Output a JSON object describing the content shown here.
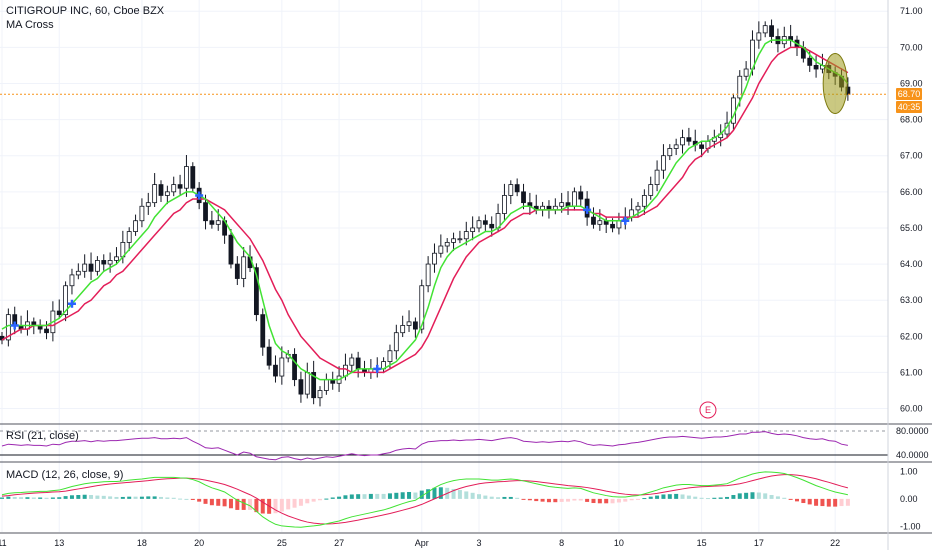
{
  "header": {
    "symbol_line": "CITIGROUP INC, 60, Cboe BZX",
    "indicator": "MA Cross"
  },
  "price_badge": {
    "price": "68.70",
    "countdown": "40:35"
  },
  "earnings_marker": "E",
  "chart_data": [
    {
      "type": "candlestick",
      "panel": "price",
      "yticks": [
        "71.00",
        "70.00",
        "69.00",
        "68.00",
        "67.00",
        "66.00",
        "65.00",
        "64.00",
        "63.00",
        "62.00",
        "61.00",
        "60.00"
      ],
      "ylim": [
        59.6,
        71.2
      ],
      "x_ticks": [
        {
          "label": "11",
          "index": 0
        },
        {
          "label": "13",
          "index": 9
        },
        {
          "label": "18",
          "index": 22
        },
        {
          "label": "20",
          "index": 31
        },
        {
          "label": "25",
          "index": 44
        },
        {
          "label": "27",
          "index": 53
        },
        {
          "label": "Apr",
          "index": 66
        },
        {
          "label": "3",
          "index": 75
        },
        {
          "label": "8",
          "index": 88
        },
        {
          "label": "10",
          "index": 97
        },
        {
          "label": "15",
          "index": 110
        },
        {
          "label": "17",
          "index": 119
        },
        {
          "label": "22",
          "index": 131
        }
      ],
      "close": [
        61.9,
        62.6,
        62.3,
        62.2,
        62.4,
        62.3,
        62.2,
        62.1,
        62.7,
        62.6,
        63.4,
        63.7,
        63.8,
        64.0,
        63.8,
        64.1,
        64.0,
        64.1,
        64.2,
        64.6,
        64.9,
        65.2,
        65.6,
        65.7,
        66.2,
        65.9,
        66.0,
        66.2,
        66.1,
        66.7,
        66.1,
        65.7,
        65.2,
        65.1,
        65.2,
        64.8,
        64.0,
        63.6,
        64.2,
        63.9,
        62.6,
        61.7,
        61.2,
        60.9,
        61.4,
        61.5,
        60.8,
        60.4,
        61.0,
        60.3,
        60.5,
        60.8,
        60.7,
        60.9,
        61.2,
        61.4,
        61.1,
        61.0,
        61.1,
        61.1,
        61.3,
        61.6,
        62.1,
        62.3,
        62.4,
        62.2,
        63.4,
        64.0,
        64.3,
        64.5,
        64.6,
        64.7,
        64.7,
        64.9,
        65.0,
        65.2,
        65.1,
        65.0,
        65.4,
        65.9,
        66.2,
        66.0,
        65.7,
        65.6,
        65.5,
        65.6,
        65.5,
        65.6,
        65.7,
        65.6,
        66.0,
        65.8,
        65.3,
        65.1,
        65.2,
        65.1,
        65.0,
        65.2,
        65.3,
        65.5,
        65.6,
        65.9,
        66.2,
        66.6,
        67.0,
        67.2,
        67.3,
        67.5,
        67.4,
        67.3,
        67.2,
        67.4,
        67.5,
        67.6,
        67.9,
        68.6,
        69.2,
        69.4,
        70.2,
        70.4,
        70.6,
        70.3,
        70.1,
        70.3,
        70.2,
        70.0,
        69.7,
        69.5,
        69.4,
        69.5,
        69.3,
        69.2,
        68.9,
        68.7
      ],
      "series": [
        {
          "name": "short MA",
          "color": "#42e334",
          "values": [
            62.2,
            62.3,
            62.3,
            62.3,
            62.3,
            62.3,
            62.3,
            62.3,
            62.4,
            62.5,
            62.7,
            62.9,
            63.1,
            63.3,
            63.5,
            63.6,
            63.8,
            63.9,
            64.0,
            64.2,
            64.4,
            64.6,
            64.8,
            65.0,
            65.3,
            65.5,
            65.7,
            65.8,
            65.9,
            66.0,
            66.0,
            65.9,
            65.8,
            65.6,
            65.4,
            65.2,
            64.9,
            64.6,
            64.4,
            64.2,
            63.7,
            63.0,
            62.3,
            61.8,
            61.6,
            61.5,
            61.3,
            61.1,
            61.0,
            60.9,
            60.8,
            60.8,
            60.8,
            60.8,
            60.9,
            61.0,
            61.1,
            61.1,
            61.1,
            61.1,
            61.1,
            61.2,
            61.3,
            61.5,
            61.7,
            61.9,
            62.3,
            62.8,
            63.4,
            63.9,
            64.2,
            64.4,
            64.5,
            64.6,
            64.7,
            64.8,
            64.9,
            64.9,
            65.0,
            65.2,
            65.4,
            65.5,
            65.6,
            65.6,
            65.5,
            65.5,
            65.5,
            65.5,
            65.5,
            65.6,
            65.6,
            65.6,
            65.5,
            65.4,
            65.3,
            65.2,
            65.2,
            65.2,
            65.2,
            65.3,
            65.4,
            65.5,
            65.7,
            65.9,
            66.2,
            66.5,
            66.8,
            67.0,
            67.2,
            67.3,
            67.4,
            67.4,
            67.5,
            67.6,
            67.8,
            68.1,
            68.5,
            68.9,
            69.4,
            69.8,
            70.1,
            70.2,
            70.2,
            70.2,
            70.2,
            70.1,
            70.0,
            69.8,
            69.6,
            69.5,
            69.4,
            69.3,
            69.2,
            69.0
          ]
        },
        {
          "name": "long MA",
          "color": "#e31e59",
          "values": [
            61.9,
            62.0,
            62.1,
            62.2,
            62.2,
            62.3,
            62.3,
            62.3,
            62.3,
            62.4,
            62.5,
            62.6,
            62.7,
            62.9,
            63.0,
            63.2,
            63.4,
            63.5,
            63.7,
            63.8,
            64.0,
            64.2,
            64.4,
            64.6,
            64.8,
            65.0,
            65.2,
            65.4,
            65.5,
            65.7,
            65.8,
            65.8,
            65.8,
            65.7,
            65.6,
            65.5,
            65.3,
            65.1,
            64.9,
            64.7,
            64.4,
            64.1,
            63.7,
            63.3,
            63.0,
            62.6,
            62.3,
            62.0,
            61.8,
            61.6,
            61.4,
            61.3,
            61.2,
            61.1,
            61.1,
            61.0,
            61.0,
            61.0,
            61.0,
            61.0,
            61.0,
            61.1,
            61.2,
            61.3,
            61.4,
            61.5,
            61.7,
            62.0,
            62.4,
            62.8,
            63.2,
            63.6,
            63.9,
            64.2,
            64.4,
            64.6,
            64.7,
            64.8,
            64.9,
            65.0,
            65.2,
            65.3,
            65.4,
            65.4,
            65.5,
            65.5,
            65.5,
            65.5,
            65.5,
            65.5,
            65.5,
            65.5,
            65.5,
            65.4,
            65.4,
            65.3,
            65.3,
            65.3,
            65.3,
            65.3,
            65.3,
            65.4,
            65.5,
            65.6,
            65.8,
            66.0,
            66.2,
            66.4,
            66.7,
            66.9,
            67.0,
            67.2,
            67.3,
            67.4,
            67.5,
            67.7,
            68.0,
            68.3,
            68.6,
            69.0,
            69.3,
            69.6,
            69.8,
            69.9,
            70.0,
            70.0,
            70.0,
            69.9,
            69.8,
            69.7,
            69.6,
            69.5,
            69.4,
            69.3
          ]
        }
      ],
      "crosses_at": [
        2,
        11,
        31,
        59,
        92,
        98
      ]
    },
    {
      "type": "line",
      "panel": "RSI",
      "title": "RSI (21, close)",
      "yticks": [
        "80.0000",
        "40.0000"
      ],
      "ylim": [
        30,
        90
      ],
      "series": [
        {
          "name": "RSI",
          "color": "#9c27b0",
          "values": [
            55,
            58,
            57,
            56,
            57,
            56,
            56,
            55,
            58,
            57,
            61,
            63,
            63,
            64,
            62,
            64,
            63,
            64,
            64,
            65,
            66,
            67,
            68,
            68,
            69,
            67,
            67,
            68,
            67,
            69,
            63,
            58,
            52,
            51,
            52,
            48,
            44,
            40,
            45,
            43,
            37,
            35,
            33,
            32,
            36,
            37,
            34,
            32,
            35,
            33,
            35,
            37,
            36,
            38,
            40,
            42,
            40,
            39,
            40,
            40,
            42,
            44,
            48,
            50,
            51,
            50,
            58,
            62,
            63,
            64,
            64,
            65,
            64,
            65,
            65,
            66,
            65,
            64,
            66,
            68,
            69,
            67,
            63,
            62,
            61,
            62,
            61,
            62,
            63,
            62,
            64,
            62,
            58,
            56,
            57,
            56,
            55,
            57,
            58,
            60,
            61,
            63,
            65,
            67,
            69,
            70,
            70,
            71,
            70,
            69,
            68,
            69,
            70,
            70,
            71,
            73,
            75,
            75,
            78,
            78,
            79,
            76,
            74,
            75,
            74,
            72,
            69,
            67,
            66,
            67,
            64,
            63,
            58,
            56
          ]
        }
      ]
    },
    {
      "type": "line",
      "panel": "MACD",
      "title": "MACD (12, 26, close, 9)",
      "yticks": [
        "1.00",
        "0.00",
        "-1.00"
      ],
      "ylim": [
        -1.2,
        1.3
      ],
      "series": [
        {
          "name": "MACD",
          "color": "#42e334",
          "values": [
            0.15,
            0.2,
            0.22,
            0.23,
            0.25,
            0.26,
            0.27,
            0.27,
            0.3,
            0.32,
            0.38,
            0.45,
            0.5,
            0.55,
            0.58,
            0.6,
            0.62,
            0.63,
            0.63,
            0.65,
            0.68,
            0.7,
            0.72,
            0.75,
            0.78,
            0.78,
            0.78,
            0.78,
            0.76,
            0.75,
            0.7,
            0.62,
            0.5,
            0.4,
            0.33,
            0.25,
            0.1,
            -0.05,
            -0.15,
            -0.25,
            -0.45,
            -0.65,
            -0.8,
            -0.92,
            -0.98,
            -1.0,
            -1.02,
            -1.03,
            -1.0,
            -0.98,
            -0.95,
            -0.9,
            -0.85,
            -0.8,
            -0.72,
            -0.65,
            -0.6,
            -0.55,
            -0.5,
            -0.45,
            -0.4,
            -0.33,
            -0.25,
            -0.17,
            -0.1,
            -0.05,
            0.1,
            0.25,
            0.4,
            0.52,
            0.6,
            0.66,
            0.7,
            0.72,
            0.72,
            0.72,
            0.7,
            0.68,
            0.68,
            0.7,
            0.72,
            0.7,
            0.65,
            0.6,
            0.55,
            0.5,
            0.45,
            0.42,
            0.4,
            0.38,
            0.4,
            0.38,
            0.3,
            0.22,
            0.17,
            0.12,
            0.08,
            0.07,
            0.07,
            0.1,
            0.12,
            0.18,
            0.25,
            0.32,
            0.4,
            0.45,
            0.5,
            0.52,
            0.52,
            0.5,
            0.48,
            0.48,
            0.5,
            0.52,
            0.55,
            0.65,
            0.75,
            0.82,
            0.9,
            0.95,
            0.98,
            0.97,
            0.95,
            0.92,
            0.85,
            0.77,
            0.68,
            0.58,
            0.48,
            0.4,
            0.32,
            0.25,
            0.2,
            0.15
          ]
        },
        {
          "name": "Signal",
          "color": "#e31e59",
          "values": [
            0.1,
            0.12,
            0.15,
            0.17,
            0.19,
            0.21,
            0.22,
            0.23,
            0.25,
            0.26,
            0.28,
            0.32,
            0.36,
            0.4,
            0.44,
            0.48,
            0.51,
            0.54,
            0.56,
            0.58,
            0.6,
            0.62,
            0.64,
            0.66,
            0.69,
            0.71,
            0.73,
            0.74,
            0.75,
            0.75,
            0.74,
            0.72,
            0.68,
            0.63,
            0.58,
            0.52,
            0.44,
            0.35,
            0.25,
            0.15,
            0.03,
            -0.12,
            -0.26,
            -0.4,
            -0.52,
            -0.62,
            -0.7,
            -0.78,
            -0.84,
            -0.88,
            -0.9,
            -0.91,
            -0.9,
            -0.88,
            -0.85,
            -0.81,
            -0.77,
            -0.72,
            -0.68,
            -0.63,
            -0.58,
            -0.53,
            -0.47,
            -0.41,
            -0.35,
            -0.28,
            -0.2,
            -0.1,
            0.0,
            0.1,
            0.2,
            0.3,
            0.38,
            0.45,
            0.5,
            0.55,
            0.58,
            0.6,
            0.62,
            0.63,
            0.65,
            0.66,
            0.66,
            0.65,
            0.63,
            0.6,
            0.57,
            0.54,
            0.51,
            0.48,
            0.46,
            0.44,
            0.41,
            0.37,
            0.33,
            0.28,
            0.24,
            0.2,
            0.17,
            0.15,
            0.14,
            0.15,
            0.17,
            0.2,
            0.24,
            0.28,
            0.32,
            0.36,
            0.4,
            0.42,
            0.44,
            0.45,
            0.46,
            0.47,
            0.48,
            0.51,
            0.55,
            0.6,
            0.66,
            0.72,
            0.78,
            0.83,
            0.86,
            0.88,
            0.88,
            0.86,
            0.83,
            0.78,
            0.73,
            0.66,
            0.6,
            0.53,
            0.46,
            0.4
          ]
        }
      ]
    }
  ]
}
